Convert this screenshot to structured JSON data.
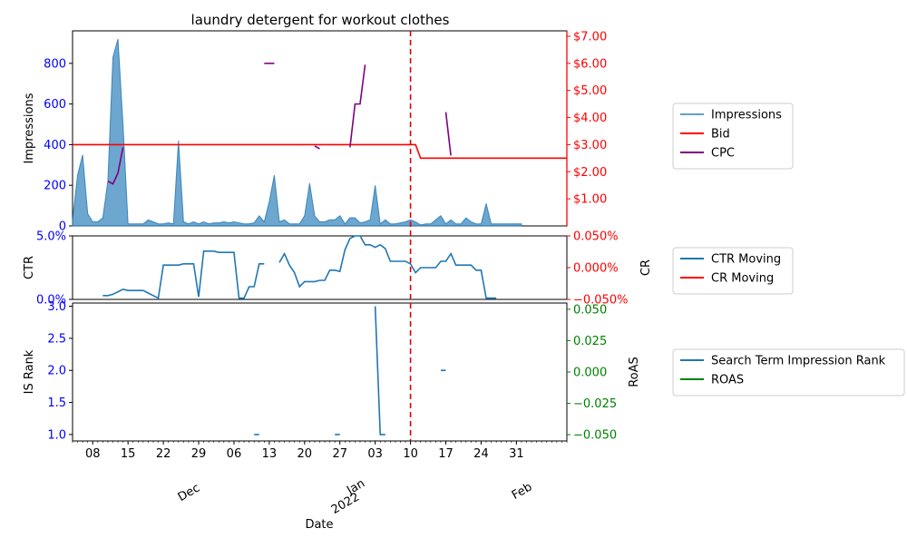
{
  "chart_data": {
    "type": "line",
    "title": "laundry detergent for workout clothes",
    "xlabel": "Date",
    "x_ticks": [
      "08",
      "15",
      "22",
      "29",
      "06",
      "13",
      "20",
      "27",
      "03",
      "10",
      "17",
      "24",
      "31"
    ],
    "x_month_labels": [
      {
        "text": "Dec",
        "index": 25
      },
      {
        "text": "Jan",
        "index": 57
      },
      {
        "text": "2022",
        "index": 57
      },
      {
        "text": "Feb",
        "index": 88
      }
    ],
    "vline_index": 67,
    "colors": {
      "impressions": "#1f77b4",
      "bid": "#ff0000",
      "cpc": "#800080",
      "ctr": "#1f77b4",
      "cr": "#ff0000",
      "rank": "#1f77b4",
      "roas": "#008000",
      "vline": "#dd0000",
      "left_ticks": "#0000ff",
      "cr_ticks": "#ff0000",
      "roas_ticks": "#008000"
    },
    "panels": [
      {
        "ylabel": "Impressions",
        "ylim": [
          0,
          960
        ],
        "yticks": [
          "0",
          "200",
          "400",
          "600",
          "800"
        ],
        "yticks_values": [
          0,
          200,
          400,
          600,
          800
        ],
        "y2label": "",
        "y2lim": [
          0,
          7.2
        ],
        "y2ticks": [
          "$1.00",
          "$2.00",
          "$3.00",
          "$4.00",
          "$5.00",
          "$6.00",
          "$7.00"
        ],
        "y2ticks_values": [
          1,
          2,
          3,
          4,
          5,
          6,
          7
        ],
        "legend": [
          "Impressions",
          "Bid",
          "CPC"
        ]
      },
      {
        "ylabel": "CTR",
        "ylim": [
          0,
          5
        ],
        "yticks": [
          "0.0%",
          "5.0%"
        ],
        "yticks_values": [
          0,
          5
        ],
        "y2label": "CR",
        "y2lim": [
          -0.05,
          0.05
        ],
        "y2ticks": [
          "−0.050%",
          "0.000%",
          "0.050%"
        ],
        "y2ticks_values": [
          -0.05,
          0,
          0.05
        ],
        "legend": [
          "CTR Moving",
          "CR Moving"
        ]
      },
      {
        "ylabel": "IS Rank",
        "ylim": [
          0.9,
          3.05
        ],
        "yticks": [
          "1.0",
          "1.5",
          "2.0",
          "2.5",
          "3.0"
        ],
        "yticks_values": [
          1,
          1.5,
          2,
          2.5,
          3
        ],
        "y2label": "RoAS",
        "y2lim": [
          -0.055,
          0.055
        ],
        "y2ticks": [
          "−0.050",
          "−0.025",
          "0.000",
          "0.025",
          "0.050"
        ],
        "y2ticks_values": [
          -0.05,
          -0.025,
          0,
          0.025,
          0.05
        ],
        "legend": [
          "Search Term Impression Rank",
          "ROAS"
        ]
      }
    ],
    "series": {
      "impressions": [
        30,
        250,
        350,
        60,
        20,
        20,
        40,
        220,
        830,
        920,
        500,
        10,
        10,
        10,
        10,
        30,
        20,
        10,
        10,
        15,
        10,
        420,
        20,
        10,
        20,
        10,
        20,
        10,
        15,
        15,
        20,
        15,
        20,
        15,
        10,
        10,
        15,
        50,
        20,
        120,
        250,
        20,
        30,
        10,
        10,
        10,
        50,
        210,
        50,
        20,
        20,
        30,
        30,
        50,
        10,
        40,
        40,
        15,
        20,
        30,
        200,
        10,
        30,
        10,
        10,
        15,
        20,
        30,
        20,
        5,
        10,
        10,
        30,
        50,
        10,
        30,
        10,
        10,
        40,
        20,
        10,
        10,
        110,
        10,
        10,
        10,
        10,
        10,
        10,
        10
      ],
      "bid": [
        [
          0,
          3
        ],
        [
          68,
          3
        ],
        [
          69,
          2.5
        ],
        [
          98,
          2.5
        ]
      ],
      "cpc_segments": [
        [
          [
            7,
            1.65
          ],
          [
            8,
            1.55
          ],
          [
            9,
            1.95
          ],
          [
            10,
            2.9
          ]
        ],
        [
          [
            38,
            6
          ],
          [
            39,
            6
          ],
          [
            40,
            6
          ]
        ],
        [
          [
            48,
            2.95
          ],
          [
            49,
            2.85
          ]
        ],
        [
          [
            55,
            2.9
          ],
          [
            56,
            4.5
          ],
          [
            57,
            4.5
          ],
          [
            58,
            5.95
          ]
        ],
        [
          [
            74,
            4.2
          ],
          [
            75,
            2.6
          ]
        ]
      ],
      "ctr_segments": [
        [
          [
            6,
            0.3
          ],
          [
            7,
            0.3
          ],
          [
            8,
            0.4
          ],
          [
            9,
            0.6
          ],
          [
            10,
            0.8
          ],
          [
            11,
            0.7
          ],
          [
            12,
            0.7
          ],
          [
            13,
            0.7
          ],
          [
            14,
            0.7
          ],
          [
            15,
            0.5
          ],
          [
            16,
            0.3
          ],
          [
            17,
            0.1
          ],
          [
            18,
            2.7
          ],
          [
            19,
            2.7
          ],
          [
            20,
            2.7
          ],
          [
            21,
            2.7
          ],
          [
            22,
            2.8
          ],
          [
            23,
            2.8
          ],
          [
            24,
            2.8
          ],
          [
            25,
            0.2
          ],
          [
            26,
            3.8
          ],
          [
            27,
            3.8
          ],
          [
            28,
            3.8
          ],
          [
            29,
            3.7
          ],
          [
            30,
            3.7
          ],
          [
            31,
            3.7
          ],
          [
            32,
            3.7
          ],
          [
            33,
            0.1
          ],
          [
            34,
            0.1
          ],
          [
            35,
            1.0
          ],
          [
            36,
            1.0
          ],
          [
            37,
            2.8
          ],
          [
            38,
            2.8
          ]
        ],
        [
          [
            41,
            2.9
          ],
          [
            42,
            3.6
          ],
          [
            43,
            2.7
          ],
          [
            44,
            2.1
          ],
          [
            45,
            1.0
          ],
          [
            46,
            1.4
          ],
          [
            47,
            1.4
          ],
          [
            48,
            1.4
          ],
          [
            49,
            1.5
          ],
          [
            50,
            1.5
          ],
          [
            51,
            2.3
          ],
          [
            52,
            2.3
          ],
          [
            53,
            2.2
          ],
          [
            54,
            3.9
          ],
          [
            55,
            4.8
          ],
          [
            56,
            5.0
          ],
          [
            57,
            5.0
          ],
          [
            58,
            4.3
          ],
          [
            59,
            4.3
          ],
          [
            60,
            4.1
          ],
          [
            61,
            4.3
          ],
          [
            62,
            4.0
          ],
          [
            63,
            3.0
          ],
          [
            64,
            3.0
          ],
          [
            65,
            3.0
          ],
          [
            66,
            3.0
          ],
          [
            67,
            2.8
          ],
          [
            68,
            2.1
          ],
          [
            69,
            2.5
          ],
          [
            70,
            2.5
          ],
          [
            71,
            2.5
          ],
          [
            72,
            2.5
          ],
          [
            73,
            3.0
          ],
          [
            74,
            3.0
          ],
          [
            75,
            3.6
          ],
          [
            76,
            2.7
          ],
          [
            77,
            2.7
          ],
          [
            78,
            2.7
          ],
          [
            79,
            2.7
          ],
          [
            80,
            2.3
          ],
          [
            81,
            2.3
          ],
          [
            82,
            0.1
          ],
          [
            83,
            0.1
          ],
          [
            84,
            0.1
          ]
        ]
      ],
      "rank_segments": [
        [
          [
            36,
            1.0
          ],
          [
            37,
            1.0
          ]
        ],
        [
          [
            52,
            1.0
          ],
          [
            53,
            1.0
          ]
        ],
        [
          [
            60,
            3.0
          ],
          [
            61,
            1.0
          ],
          [
            62,
            1.0
          ]
        ],
        [
          [
            73,
            2.0
          ],
          [
            74,
            2.0
          ]
        ]
      ]
    }
  }
}
